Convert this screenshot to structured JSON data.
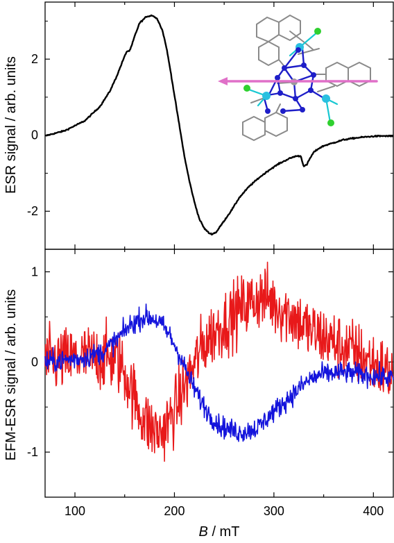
{
  "chart_data": [
    {
      "type": "line",
      "panel": "top",
      "ylabel": "ESR signal / arb. units",
      "xlim": [
        70,
        420
      ],
      "ylim": [
        -3.0,
        3.5
      ],
      "yticks": [
        -2,
        0,
        2
      ],
      "ytick_labels": [
        "-2",
        "0",
        "2"
      ],
      "grid": false,
      "inset": "molecular structure with arrow (top-right)",
      "series": [
        {
          "color": "#000000",
          "x": [
            70,
            90,
            110,
            125,
            135,
            142,
            148,
            152,
            155,
            157,
            160,
            165,
            172,
            178,
            183,
            188,
            192,
            196,
            200,
            205,
            210,
            215,
            220,
            225,
            230,
            235,
            238,
            242,
            246,
            250,
            258,
            265,
            275,
            285,
            295,
            305,
            315,
            322,
            327,
            330,
            333,
            336,
            340,
            345,
            350,
            360,
            370,
            380,
            390,
            400,
            410,
            420
          ],
          "y": [
            -0.02,
            0.12,
            0.38,
            0.75,
            1.15,
            1.55,
            1.95,
            2.2,
            2.22,
            2.35,
            2.6,
            2.95,
            3.12,
            3.15,
            3.05,
            2.75,
            2.3,
            1.7,
            1.05,
            0.25,
            -0.55,
            -1.2,
            -1.75,
            -2.2,
            -2.45,
            -2.58,
            -2.6,
            -2.55,
            -2.4,
            -2.25,
            -1.95,
            -1.65,
            -1.35,
            -1.12,
            -0.92,
            -0.75,
            -0.62,
            -0.55,
            -0.55,
            -0.82,
            -0.78,
            -0.62,
            -0.45,
            -0.35,
            -0.28,
            -0.2,
            -0.12,
            -0.08,
            -0.05,
            -0.03,
            -0.02,
            -0.03
          ]
        }
      ]
    },
    {
      "type": "line",
      "panel": "bottom",
      "xlabel_italic": "B",
      "xlabel_rest": " / mT",
      "ylabel": "EFM-ESR signal / arb. units",
      "xlim": [
        70,
        420
      ],
      "ylim": [
        -1.5,
        1.25
      ],
      "xticks": [
        100,
        200,
        300,
        400
      ],
      "xtick_labels": [
        "100",
        "200",
        "300",
        "400"
      ],
      "yticks": [
        -1,
        0,
        1
      ],
      "ytick_labels": [
        "-1",
        "0",
        "1"
      ],
      "grid": false,
      "series": [
        {
          "color": "#e8191a",
          "x": [
            70,
            90,
            110,
            130,
            145,
            155,
            165,
            175,
            185,
            195,
            205,
            215,
            225,
            235,
            245,
            255,
            265,
            275,
            285,
            295,
            305,
            315,
            325,
            335,
            345,
            355,
            365,
            375,
            385,
            395,
            405,
            420
          ],
          "y": [
            0.0,
            0.02,
            0.05,
            0.05,
            0.0,
            -0.25,
            -0.55,
            -0.72,
            -0.8,
            -0.65,
            -0.42,
            -0.15,
            0.1,
            0.28,
            0.38,
            0.48,
            0.58,
            0.65,
            0.72,
            0.7,
            0.6,
            0.55,
            0.45,
            0.35,
            0.3,
            0.25,
            0.18,
            0.15,
            0.08,
            0.02,
            -0.05,
            -0.15
          ],
          "noise": 0.26
        },
        {
          "color": "#1414dc",
          "x": [
            70,
            90,
            110,
            130,
            145,
            155,
            165,
            172,
            180,
            188,
            195,
            205,
            215,
            225,
            235,
            245,
            255,
            265,
            275,
            285,
            295,
            305,
            315,
            325,
            335,
            345,
            360,
            375,
            390,
            405,
            420
          ],
          "y": [
            0.0,
            0.02,
            0.05,
            0.12,
            0.28,
            0.4,
            0.48,
            0.5,
            0.48,
            0.4,
            0.3,
            0.08,
            -0.18,
            -0.4,
            -0.58,
            -0.7,
            -0.75,
            -0.78,
            -0.76,
            -0.72,
            -0.6,
            -0.5,
            -0.4,
            -0.3,
            -0.2,
            -0.15,
            -0.12,
            -0.12,
            -0.14,
            -0.16,
            -0.18
          ],
          "noise": 0.085
        }
      ]
    }
  ]
}
